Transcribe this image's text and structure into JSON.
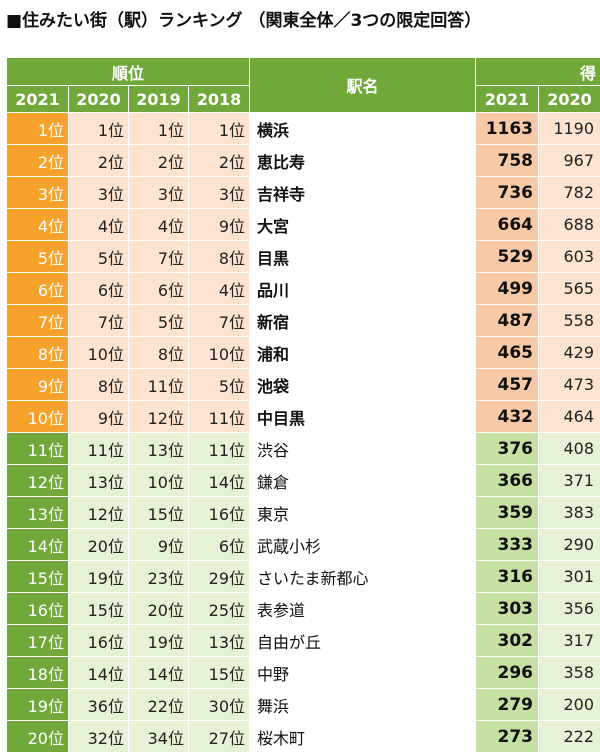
{
  "title": "■住みたい街（駅）ランキング （関東全体／3つの限定回答）",
  "header": {
    "rank_group": "順位",
    "station": "駅名",
    "score_group": "得",
    "years_rank": [
      "2021",
      "2020",
      "2019",
      "2018"
    ],
    "years_score": [
      "2021",
      "2020"
    ]
  },
  "colors": {
    "top_accent": "#f7a22a",
    "green_accent": "#70a83a"
  },
  "rows": [
    {
      "r2021": "1位",
      "r2020": "1位",
      "r2019": "1位",
      "r2018": "1位",
      "station": "横浜",
      "s2021": "1163",
      "s2020": "1190"
    },
    {
      "r2021": "2位",
      "r2020": "2位",
      "r2019": "2位",
      "r2018": "2位",
      "station": "恵比寿",
      "s2021": "758",
      "s2020": "967"
    },
    {
      "r2021": "3位",
      "r2020": "3位",
      "r2019": "3位",
      "r2018": "3位",
      "station": "吉祥寺",
      "s2021": "736",
      "s2020": "782"
    },
    {
      "r2021": "4位",
      "r2020": "4位",
      "r2019": "4位",
      "r2018": "9位",
      "station": "大宮",
      "s2021": "664",
      "s2020": "688"
    },
    {
      "r2021": "5位",
      "r2020": "5位",
      "r2019": "7位",
      "r2018": "8位",
      "station": "目黒",
      "s2021": "529",
      "s2020": "603"
    },
    {
      "r2021": "6位",
      "r2020": "6位",
      "r2019": "6位",
      "r2018": "4位",
      "station": "品川",
      "s2021": "499",
      "s2020": "565"
    },
    {
      "r2021": "7位",
      "r2020": "7位",
      "r2019": "5位",
      "r2018": "7位",
      "station": "新宿",
      "s2021": "487",
      "s2020": "558"
    },
    {
      "r2021": "8位",
      "r2020": "10位",
      "r2019": "8位",
      "r2018": "10位",
      "station": "浦和",
      "s2021": "465",
      "s2020": "429"
    },
    {
      "r2021": "9位",
      "r2020": "8位",
      "r2019": "11位",
      "r2018": "5位",
      "station": "池袋",
      "s2021": "457",
      "s2020": "473"
    },
    {
      "r2021": "10位",
      "r2020": "9位",
      "r2019": "12位",
      "r2018": "11位",
      "station": "中目黒",
      "s2021": "432",
      "s2020": "464"
    },
    {
      "r2021": "11位",
      "r2020": "11位",
      "r2019": "13位",
      "r2018": "11位",
      "station": "渋谷",
      "s2021": "376",
      "s2020": "408"
    },
    {
      "r2021": "12位",
      "r2020": "13位",
      "r2019": "10位",
      "r2018": "14位",
      "station": "鎌倉",
      "s2021": "366",
      "s2020": "371"
    },
    {
      "r2021": "13位",
      "r2020": "12位",
      "r2019": "15位",
      "r2018": "16位",
      "station": "東京",
      "s2021": "359",
      "s2020": "383"
    },
    {
      "r2021": "14位",
      "r2020": "20位",
      "r2019": "9位",
      "r2018": "6位",
      "station": "武蔵小杉",
      "s2021": "333",
      "s2020": "290"
    },
    {
      "r2021": "15位",
      "r2020": "19位",
      "r2019": "23位",
      "r2018": "29位",
      "station": "さいたま新都心",
      "s2021": "316",
      "s2020": "301"
    },
    {
      "r2021": "16位",
      "r2020": "15位",
      "r2019": "20位",
      "r2018": "25位",
      "station": "表参道",
      "s2021": "303",
      "s2020": "356"
    },
    {
      "r2021": "17位",
      "r2020": "16位",
      "r2019": "19位",
      "r2018": "13位",
      "station": "自由が丘",
      "s2021": "302",
      "s2020": "317"
    },
    {
      "r2021": "18位",
      "r2020": "14位",
      "r2019": "14位",
      "r2018": "15位",
      "station": "中野",
      "s2021": "296",
      "s2020": "358"
    },
    {
      "r2021": "19位",
      "r2020": "36位",
      "r2019": "22位",
      "r2018": "30位",
      "station": "舞浜",
      "s2021": "279",
      "s2020": "200"
    },
    {
      "r2021": "20位",
      "r2020": "32位",
      "r2019": "34位",
      "r2018": "27位",
      "station": "桜木町",
      "s2021": "273",
      "s2020": "222"
    }
  ]
}
